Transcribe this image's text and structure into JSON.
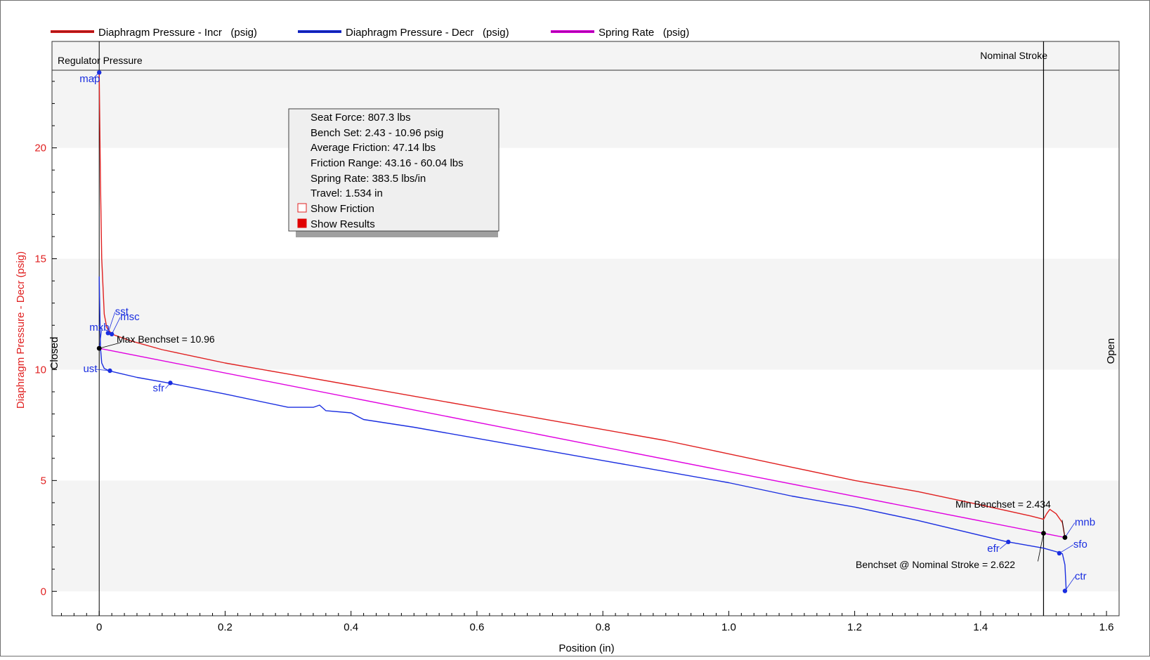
{
  "legend": [
    {
      "label": "Diaphragm Pressure - Incr   (psig)",
      "color": "#e02020"
    },
    {
      "label": "Diaphragm Pressure - Decr   (psig)",
      "color": "#1a2ee0"
    },
    {
      "label": "Spring Rate   (psig)",
      "color": "#e000e0"
    }
  ],
  "annotations": {
    "regulator_pressure": "Regulator Pressure",
    "nominal_stroke": "Nominal Stroke",
    "closed": "Closed",
    "open": "Open",
    "max_benchset": "Max Benchset = 10.96",
    "min_benchset": "Min Benchset = 2.434",
    "benchset_nominal": "Benchset @ Nominal Stroke = 2.622"
  },
  "results_box": {
    "lines": [
      "Seat Force: 807.3 lbs",
      "Bench Set: 2.43 - 10.96 psig",
      "Average Friction: 47.14 lbs",
      "Friction Range: 43.16 - 60.04 lbs",
      "Spring Rate: 383.5 lbs/in",
      "Travel: 1.534 in"
    ],
    "show_friction": "Show Friction",
    "show_results": "Show Results"
  },
  "colors": {
    "incr": "#e02020",
    "decr": "#1a2ee0",
    "spring": "#e000e0",
    "marker_label": "#1a2ee0",
    "ylabel": "#e02020"
  },
  "chart_data": {
    "type": "line",
    "title": "",
    "xlabel": "Position   (in)",
    "ylabel": "Diaphragm Pressure - Decr   (psig)",
    "xlim": [
      -0.075,
      1.62
    ],
    "ylim": [
      -1.1,
      24.8
    ],
    "xticks": [
      0,
      0.2,
      0.4,
      0.6,
      0.8,
      1.0,
      1.2,
      1.4,
      1.6
    ],
    "xtick_labels": [
      "0",
      "0.2",
      "0.4",
      "0.6",
      "0.8",
      "1.0",
      "1.2",
      "1.4",
      "1.6"
    ],
    "yticks": [
      0,
      5,
      10,
      15,
      20
    ],
    "ytick_labels": [
      "0",
      "5",
      "10",
      "15",
      "20"
    ],
    "reference_lines": {
      "regulator_pressure_y": 23.5,
      "closed_x": 0,
      "nominal_stroke_x": 1.5
    },
    "series": [
      {
        "name": "Diaphragm Pressure - Incr   (psig)",
        "x": [
          0,
          0.002,
          0.004,
          0.008,
          0.012,
          0.02,
          0.05,
          0.1,
          0.2,
          0.3,
          0.4,
          0.5,
          0.6,
          0.7,
          0.8,
          0.9,
          1.0,
          1.1,
          1.2,
          1.3,
          1.4,
          1.48,
          1.5,
          1.505,
          1.51,
          1.52,
          1.53,
          1.534
        ],
        "y": [
          23.4,
          18.5,
          15.0,
          12.5,
          11.9,
          11.6,
          11.3,
          10.9,
          10.3,
          9.8,
          9.3,
          8.8,
          8.3,
          7.8,
          7.3,
          6.8,
          6.2,
          5.6,
          5.0,
          4.5,
          3.9,
          3.4,
          3.25,
          3.5,
          3.7,
          3.5,
          3.1,
          2.43
        ]
      },
      {
        "name": "Diaphragm Pressure - Decr   (psig)",
        "x": [
          0,
          0.002,
          0.004,
          0.008,
          0.015,
          0.03,
          0.06,
          0.11,
          0.2,
          0.3,
          0.34,
          0.35,
          0.36,
          0.4,
          0.42,
          0.5,
          0.6,
          0.7,
          0.8,
          0.9,
          1.0,
          1.1,
          1.2,
          1.3,
          1.44,
          1.5,
          1.525,
          1.53,
          1.534,
          1.536
        ],
        "y": [
          14.2,
          11.0,
          10.3,
          10.05,
          9.95,
          9.85,
          9.65,
          9.4,
          8.9,
          8.3,
          8.3,
          8.4,
          8.15,
          8.05,
          7.75,
          7.4,
          6.9,
          6.4,
          5.9,
          5.4,
          4.9,
          4.3,
          3.8,
          3.2,
          2.25,
          1.95,
          1.75,
          1.7,
          1.2,
          0.05
        ]
      },
      {
        "name": "Spring Rate   (psig)",
        "x": [
          0,
          1.534
        ],
        "y": [
          10.96,
          2.43
        ]
      }
    ],
    "points": [
      {
        "label": "map",
        "x": 0.0,
        "y": 23.4
      },
      {
        "label": "sst",
        "x": 0.014,
        "y": 11.65
      },
      {
        "label": "msc",
        "x": 0.02,
        "y": 11.6
      },
      {
        "label": "mxb",
        "x": 0.0,
        "y": 10.96
      },
      {
        "label": "ust",
        "x": 0.017,
        "y": 9.95
      },
      {
        "label": "sfr",
        "x": 0.113,
        "y": 9.4
      },
      {
        "label": "efr",
        "x": 1.444,
        "y": 2.23
      },
      {
        "label": "sfo",
        "x": 1.525,
        "y": 1.72
      },
      {
        "label": "mnb",
        "x": 1.534,
        "y": 2.43
      },
      {
        "label": "ctr",
        "x": 1.534,
        "y": 0.02
      }
    ],
    "black_markers": [
      {
        "x": 0.0,
        "y": 10.96
      },
      {
        "x": 1.5,
        "y": 2.62
      },
      {
        "x": 1.534,
        "y": 2.43
      }
    ]
  }
}
